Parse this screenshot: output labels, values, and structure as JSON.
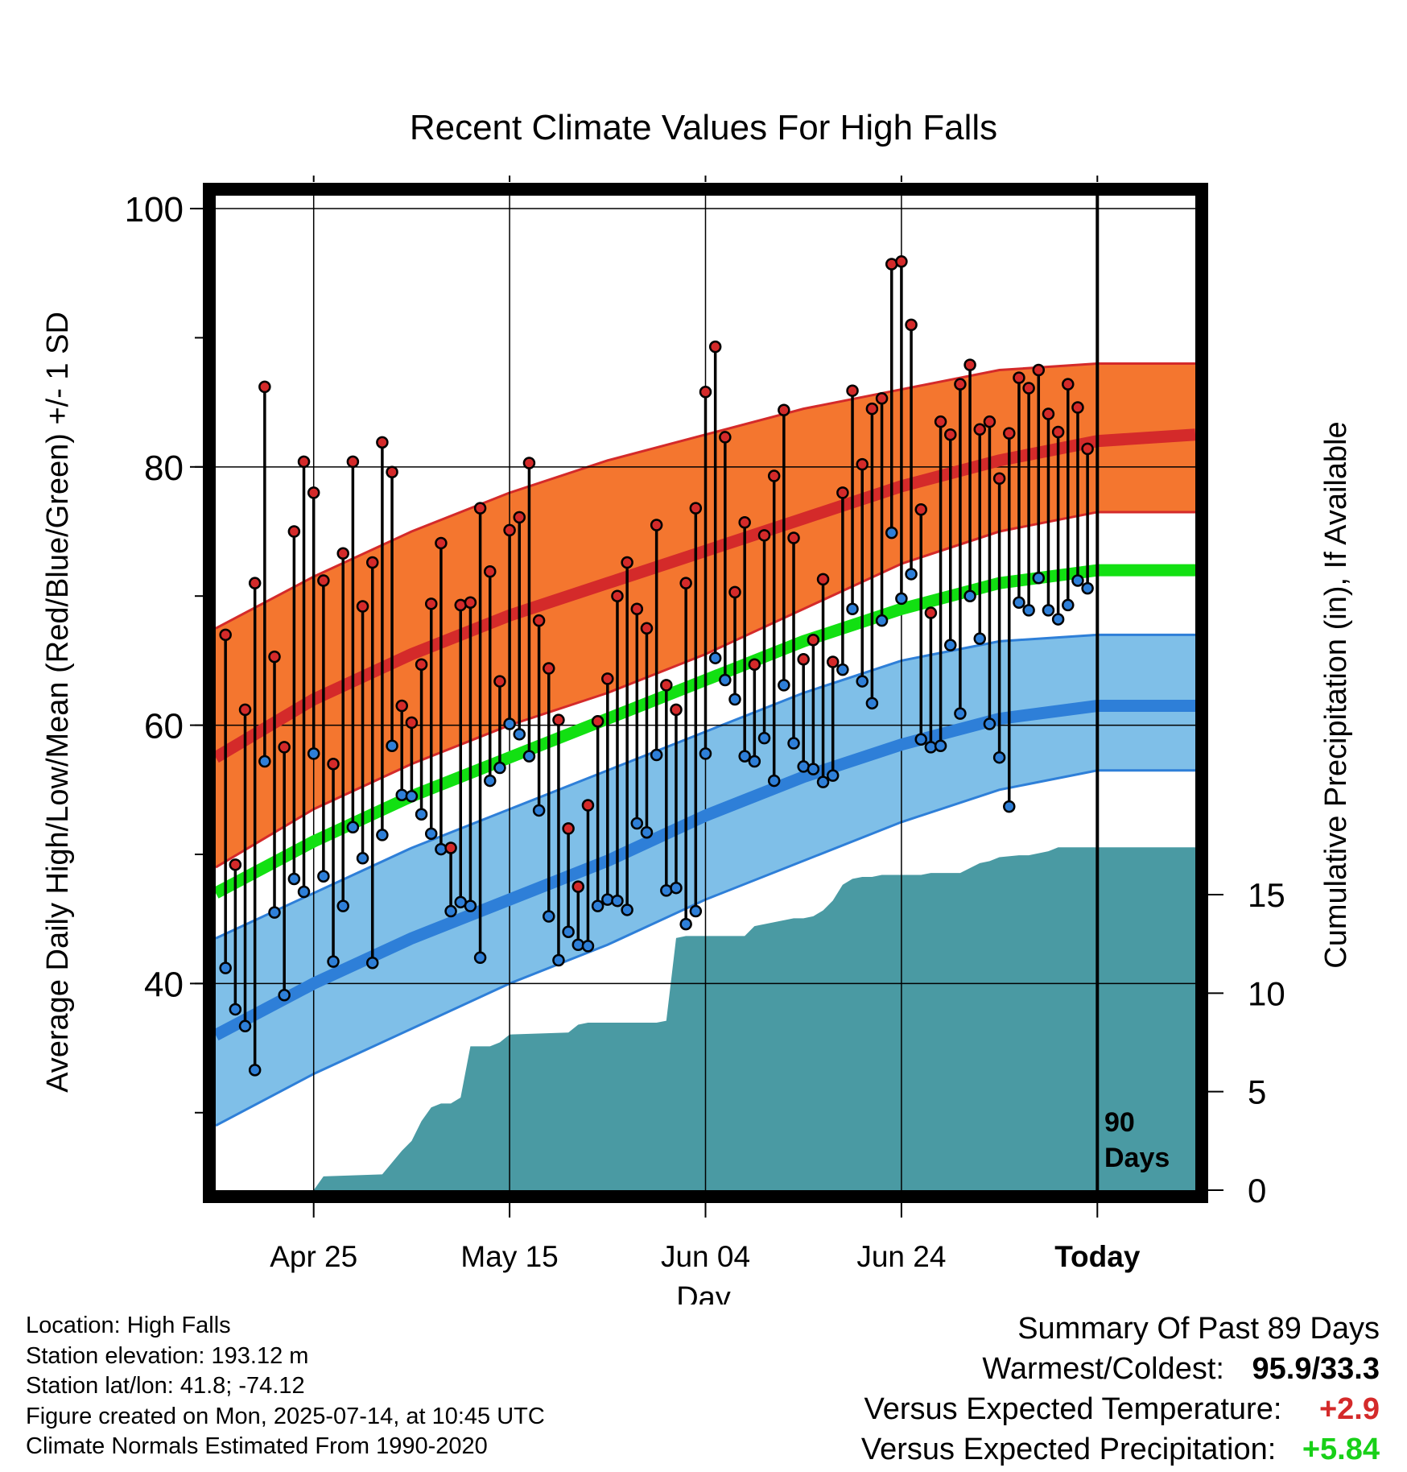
{
  "chart_data": {
    "type": "scatter",
    "title": "Recent Climate Values For High Falls",
    "xlabel": "Day",
    "ylabel_left": "Average Daily High/Low/Mean (Red/Blue/Green) +/- 1 SD",
    "ylabel_right": "Cumulative Precipitation (in), If Available",
    "x_tick_labels": [
      "Apr 25",
      "May 15",
      "Jun 04",
      "Jun 24",
      "Today"
    ],
    "today_label": [
      "90",
      "Days"
    ],
    "ylim_left": [
      24,
      101
    ],
    "y_ticks_left": [
      40,
      60,
      80,
      100
    ],
    "ylim_right": [
      0,
      20
    ],
    "y_ticks_right": [
      0,
      5,
      10,
      15
    ],
    "grid": true,
    "colors": {
      "high": "#d42a2a",
      "low": "#2e7fd8",
      "mean": "#12e012",
      "high_band": "#f4762f",
      "low_band": "#7fbfe8",
      "precip": "#4a9aa3",
      "frame": "#000000"
    },
    "normals": {
      "day": [
        0,
        10,
        20,
        30,
        40,
        50,
        60,
        70,
        80,
        90,
        100
      ],
      "mean_high": [
        57.5,
        62.0,
        65.5,
        68.5,
        71.0,
        73.5,
        76.0,
        78.5,
        80.5,
        82.0,
        82.5
      ],
      "high_sd_upper": [
        67.5,
        71.5,
        75.0,
        78.0,
        80.5,
        82.5,
        84.5,
        86.0,
        87.5,
        88.0,
        88.0
      ],
      "high_sd_lower": [
        49.0,
        53.5,
        57.0,
        60.0,
        62.5,
        65.5,
        69.0,
        72.5,
        75.0,
        76.5,
        76.5
      ],
      "mean_temp": [
        47.0,
        51.0,
        54.5,
        57.5,
        60.5,
        63.5,
        66.5,
        69.0,
        71.0,
        72.0,
        72.0
      ],
      "mean_low": [
        36.0,
        40.0,
        43.5,
        46.5,
        49.5,
        53.0,
        56.0,
        58.5,
        60.5,
        61.5,
        61.5
      ],
      "low_sd_upper": [
        43.5,
        47.0,
        50.5,
        53.5,
        56.5,
        59.5,
        62.5,
        65.0,
        66.5,
        67.0,
        67.0
      ],
      "low_sd_lower": [
        29.0,
        33.0,
        36.5,
        40.0,
        43.0,
        46.5,
        49.5,
        52.5,
        55.0,
        56.5,
        56.5
      ]
    },
    "daily_high": [
      67.0,
      49.2,
      61.2,
      71.0,
      86.2,
      65.3,
      58.3,
      75.0,
      80.4,
      78.0,
      71.2,
      57.0,
      73.3,
      80.4,
      69.2,
      72.6,
      81.9,
      79.6,
      61.5,
      60.2,
      64.7,
      69.4,
      74.1,
      50.5,
      69.3,
      69.5,
      76.8,
      71.9,
      63.4,
      75.1,
      76.1,
      80.3,
      68.1,
      64.4,
      60.4,
      52.0,
      47.5,
      53.8,
      60.3,
      63.6,
      70.0,
      72.6,
      69.0,
      67.5,
      75.5,
      63.1,
      61.2,
      71.0,
      76.8,
      85.8,
      89.3,
      82.3,
      70.3,
      75.7,
      64.7,
      74.7,
      79.3,
      84.4,
      74.5,
      65.1,
      66.6,
      71.3,
      64.9,
      78.0,
      85.9,
      80.2,
      84.5,
      85.3,
      95.7,
      95.9,
      91.0,
      76.7,
      68.7,
      83.5,
      82.5,
      86.4,
      87.9,
      82.9,
      83.5,
      79.1,
      82.6,
      86.9,
      86.1,
      87.5,
      84.1,
      82.7,
      86.4,
      84.6,
      81.4
    ],
    "daily_low": [
      41.2,
      38.0,
      36.7,
      33.3,
      57.2,
      45.5,
      39.1,
      48.1,
      47.1,
      57.8,
      48.3,
      41.7,
      46.0,
      52.1,
      49.7,
      41.6,
      51.5,
      58.4,
      54.6,
      54.5,
      53.1,
      51.6,
      50.4,
      45.6,
      46.3,
      46.0,
      42.0,
      55.7,
      56.7,
      60.1,
      59.3,
      57.6,
      53.4,
      45.2,
      41.8,
      44.0,
      43.0,
      42.9,
      46.0,
      46.5,
      46.4,
      45.7,
      52.4,
      51.7,
      57.7,
      47.2,
      47.4,
      44.6,
      45.6,
      57.8,
      65.2,
      63.5,
      62.0,
      57.6,
      57.2,
      59.0,
      55.7,
      63.1,
      58.6,
      56.8,
      56.6,
      55.6,
      56.1,
      64.3,
      69.0,
      63.4,
      61.7,
      68.1,
      74.9,
      69.8,
      71.7,
      58.9,
      58.3,
      58.4,
      66.2,
      60.9,
      70.0,
      66.7,
      60.1,
      57.5,
      53.7,
      69.5,
      68.9,
      71.4,
      68.9,
      68.2,
      69.3,
      71.2,
      70.6
    ],
    "cumulative_precip": {
      "day": [
        0,
        10,
        11,
        17,
        18,
        19,
        20,
        21,
        22,
        23,
        24,
        25,
        26,
        28,
        29,
        30,
        36,
        37,
        38,
        45,
        46,
        47,
        48,
        52,
        54,
        55,
        59,
        60,
        61,
        62,
        63,
        64,
        65,
        66,
        67,
        68,
        72,
        73,
        76,
        78,
        79,
        80,
        82,
        83,
        85,
        86,
        87,
        90,
        100
      ],
      "value": [
        0,
        0,
        0.7,
        0.8,
        1.4,
        2.0,
        2.5,
        3.5,
        4.2,
        4.4,
        4.4,
        4.7,
        7.3,
        7.3,
        7.5,
        7.9,
        8.0,
        8.4,
        8.5,
        8.5,
        8.6,
        12.8,
        12.9,
        12.9,
        12.9,
        13.4,
        13.8,
        13.8,
        13.9,
        14.2,
        14.7,
        15.5,
        15.8,
        15.9,
        15.9,
        16.0,
        16.0,
        16.1,
        16.1,
        16.6,
        16.7,
        16.9,
        17.0,
        17.0,
        17.2,
        17.4,
        17.4,
        17.4,
        17.4
      ]
    }
  },
  "footer": {
    "location": "Location: High Falls",
    "elevation": "Station elevation: 193.12 m",
    "latlon": "Station lat/lon: 41.8; -74.12",
    "created": "Figure created on Mon, 2025-07-14, at 10:45 UTC",
    "normals": "Climate Normals Estimated From 1990-2020"
  },
  "summary": {
    "title": "Summary Of Past 89 Days",
    "warmest_coldest_label": "Warmest/Coldest:",
    "warmest_coldest_value": "95.9/33.3",
    "temp_label": "Versus Expected Temperature:",
    "temp_value": "+2.9",
    "temp_color": "#d42a2a",
    "precip_label": "Versus Expected Precipitation:",
    "precip_value": "+5.84",
    "precip_color": "#18d018"
  }
}
